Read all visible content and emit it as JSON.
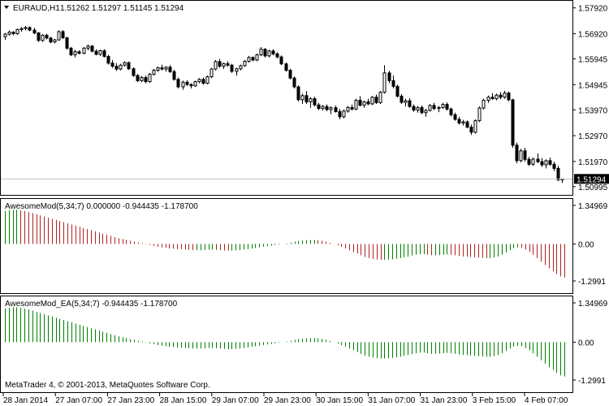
{
  "main_chart": {
    "header_symbol": "EURAUD,H1",
    "header_ohlc": "1.51262 1.51297 1.51145 1.51294",
    "price_ticks": [
      "1.57920",
      "1.56920",
      "1.55945",
      "1.54945",
      "1.53970",
      "1.52970",
      "1.51970",
      "1.50995"
    ],
    "current_price": "1.51294",
    "ylim": [
      1.508,
      1.581
    ],
    "candles": [
      [
        1.568,
        1.5695,
        1.5668,
        1.569
      ],
      [
        1.569,
        1.5705,
        1.5684,
        1.5698
      ],
      [
        1.5698,
        1.5702,
        1.5686,
        1.5692
      ],
      [
        1.5692,
        1.5712,
        1.5688,
        1.5708
      ],
      [
        1.5708,
        1.5718,
        1.57,
        1.5712
      ],
      [
        1.5712,
        1.5722,
        1.5705,
        1.5716
      ],
      [
        1.5716,
        1.572,
        1.5702,
        1.5706
      ],
      [
        1.5706,
        1.5715,
        1.569,
        1.5695
      ],
      [
        1.5695,
        1.5698,
        1.566,
        1.5666
      ],
      [
        1.5666,
        1.569,
        1.566,
        1.5686
      ],
      [
        1.5686,
        1.5692,
        1.567,
        1.5675
      ],
      [
        1.5675,
        1.568,
        1.5655,
        1.566
      ],
      [
        1.566,
        1.5672,
        1.5655,
        1.5668
      ],
      [
        1.5668,
        1.5705,
        1.5665,
        1.57
      ],
      [
        1.57,
        1.5706,
        1.5672,
        1.5676
      ],
      [
        1.5676,
        1.568,
        1.563,
        1.5636
      ],
      [
        1.5636,
        1.564,
        1.5605,
        1.561
      ],
      [
        1.561,
        1.563,
        1.56,
        1.5622
      ],
      [
        1.5622,
        1.5628,
        1.5612,
        1.5616
      ],
      [
        1.5616,
        1.564,
        1.5612,
        1.5636
      ],
      [
        1.5636,
        1.565,
        1.5628,
        1.5644
      ],
      [
        1.5644,
        1.5648,
        1.562,
        1.5624
      ],
      [
        1.5624,
        1.5632,
        1.5608,
        1.5612
      ],
      [
        1.5612,
        1.563,
        1.5606,
        1.5626
      ],
      [
        1.5626,
        1.5632,
        1.56,
        1.5604
      ],
      [
        1.5604,
        1.561,
        1.5572,
        1.5578
      ],
      [
        1.5578,
        1.559,
        1.556,
        1.5566
      ],
      [
        1.5566,
        1.5578,
        1.5548,
        1.5555
      ],
      [
        1.5555,
        1.5575,
        1.555,
        1.557
      ],
      [
        1.557,
        1.5585,
        1.5564,
        1.558
      ],
      [
        1.558,
        1.5584,
        1.5552,
        1.5556
      ],
      [
        1.5556,
        1.5562,
        1.5525,
        1.553
      ],
      [
        1.553,
        1.5536,
        1.5505,
        1.551
      ],
      [
        1.551,
        1.5528,
        1.5504,
        1.5522
      ],
      [
        1.5522,
        1.553,
        1.55,
        1.5506
      ],
      [
        1.5506,
        1.554,
        1.5502,
        1.5535
      ],
      [
        1.5535,
        1.5556,
        1.553,
        1.555
      ],
      [
        1.555,
        1.5564,
        1.5544,
        1.556
      ],
      [
        1.556,
        1.5572,
        1.555,
        1.5555
      ],
      [
        1.5555,
        1.5566,
        1.5545,
        1.5562
      ],
      [
        1.5562,
        1.557,
        1.554,
        1.5545
      ],
      [
        1.5545,
        1.5552,
        1.551,
        1.5515
      ],
      [
        1.5515,
        1.5522,
        1.548,
        1.5486
      ],
      [
        1.5486,
        1.551,
        1.5475,
        1.5504
      ],
      [
        1.5504,
        1.5512,
        1.549,
        1.5495
      ],
      [
        1.5495,
        1.55,
        1.548,
        1.549
      ],
      [
        1.549,
        1.551,
        1.5486,
        1.5506
      ],
      [
        1.5506,
        1.552,
        1.55,
        1.5515
      ],
      [
        1.5515,
        1.5522,
        1.5495,
        1.55
      ],
      [
        1.55,
        1.553,
        1.5496,
        1.5525
      ],
      [
        1.5525,
        1.556,
        1.552,
        1.5555
      ],
      [
        1.5555,
        1.559,
        1.555,
        1.5584
      ],
      [
        1.5584,
        1.5594,
        1.556,
        1.5566
      ],
      [
        1.5566,
        1.558,
        1.5555,
        1.5576
      ],
      [
        1.5576,
        1.5585,
        1.5564,
        1.557
      ],
      [
        1.557,
        1.5575,
        1.554,
        1.5546
      ],
      [
        1.5546,
        1.556,
        1.553,
        1.5556
      ],
      [
        1.5556,
        1.5572,
        1.555,
        1.5568
      ],
      [
        1.5568,
        1.559,
        1.5564,
        1.5585
      ],
      [
        1.5585,
        1.5606,
        1.558,
        1.56
      ],
      [
        1.56,
        1.5604,
        1.5585,
        1.559
      ],
      [
        1.559,
        1.5615,
        1.5586,
        1.561
      ],
      [
        1.561,
        1.564,
        1.5605,
        1.5632
      ],
      [
        1.5632,
        1.5636,
        1.56,
        1.5606
      ],
      [
        1.5606,
        1.563,
        1.56,
        1.5625
      ],
      [
        1.5625,
        1.5632,
        1.5608,
        1.5614
      ],
      [
        1.5614,
        1.562,
        1.5596,
        1.5602
      ],
      [
        1.5602,
        1.5608,
        1.557,
        1.5575
      ],
      [
        1.5575,
        1.558,
        1.5545,
        1.555
      ],
      [
        1.555,
        1.5556,
        1.5515,
        1.552
      ],
      [
        1.552,
        1.5526,
        1.548,
        1.5486
      ],
      [
        1.5486,
        1.5492,
        1.543,
        1.5436
      ],
      [
        1.5436,
        1.546,
        1.542,
        1.5452
      ],
      [
        1.5452,
        1.547,
        1.542,
        1.5428
      ],
      [
        1.5428,
        1.5446,
        1.5405,
        1.544
      ],
      [
        1.544,
        1.5448,
        1.541,
        1.5416
      ],
      [
        1.5416,
        1.5424,
        1.5396,
        1.5402
      ],
      [
        1.5402,
        1.5416,
        1.5394,
        1.541
      ],
      [
        1.541,
        1.5418,
        1.5392,
        1.5398
      ],
      [
        1.5398,
        1.541,
        1.538,
        1.5405
      ],
      [
        1.5405,
        1.5414,
        1.5386,
        1.539
      ],
      [
        1.539,
        1.54,
        1.536,
        1.537
      ],
      [
        1.537,
        1.5398,
        1.5364,
        1.5392
      ],
      [
        1.5392,
        1.5412,
        1.5386,
        1.5406
      ],
      [
        1.5406,
        1.5418,
        1.5395,
        1.54
      ],
      [
        1.54,
        1.544,
        1.5396,
        1.5434
      ],
      [
        1.5434,
        1.545,
        1.541,
        1.5415
      ],
      [
        1.5415,
        1.5432,
        1.5405,
        1.5428
      ],
      [
        1.5428,
        1.544,
        1.5415,
        1.542
      ],
      [
        1.542,
        1.545,
        1.5416,
        1.5446
      ],
      [
        1.5446,
        1.5456,
        1.542,
        1.5425
      ],
      [
        1.5425,
        1.547,
        1.542,
        1.5465
      ],
      [
        1.5465,
        1.557,
        1.546,
        1.554
      ],
      [
        1.554,
        1.5548,
        1.55,
        1.551
      ],
      [
        1.551,
        1.553,
        1.548,
        1.5488
      ],
      [
        1.5488,
        1.5494,
        1.5445,
        1.545
      ],
      [
        1.545,
        1.5458,
        1.542,
        1.5426
      ],
      [
        1.5426,
        1.544,
        1.541,
        1.5432
      ],
      [
        1.5432,
        1.5442,
        1.5405,
        1.541
      ],
      [
        1.541,
        1.5418,
        1.539,
        1.5396
      ],
      [
        1.5396,
        1.5412,
        1.5386,
        1.5406
      ],
      [
        1.5406,
        1.5414,
        1.538,
        1.5386
      ],
      [
        1.5386,
        1.54,
        1.537,
        1.5395
      ],
      [
        1.5395,
        1.542,
        1.539,
        1.5414
      ],
      [
        1.5414,
        1.5424,
        1.5396,
        1.5402
      ],
      [
        1.5402,
        1.5412,
        1.5388,
        1.5406
      ],
      [
        1.5406,
        1.5424,
        1.54,
        1.5418
      ],
      [
        1.5418,
        1.5426,
        1.5394,
        1.54
      ],
      [
        1.54,
        1.5406,
        1.5372,
        1.5378
      ],
      [
        1.5378,
        1.5386,
        1.5355,
        1.536
      ],
      [
        1.536,
        1.537,
        1.534,
        1.5346
      ],
      [
        1.5346,
        1.5358,
        1.5336,
        1.535
      ],
      [
        1.535,
        1.5356,
        1.5326,
        1.533
      ],
      [
        1.533,
        1.534,
        1.53,
        1.531
      ],
      [
        1.531,
        1.536,
        1.5305,
        1.5355
      ],
      [
        1.5355,
        1.541,
        1.535,
        1.5404
      ],
      [
        1.5404,
        1.544,
        1.5398,
        1.5434
      ],
      [
        1.5434,
        1.5452,
        1.5424,
        1.5446
      ],
      [
        1.5446,
        1.5462,
        1.5436,
        1.544
      ],
      [
        1.544,
        1.546,
        1.5434,
        1.5454
      ],
      [
        1.5454,
        1.5466,
        1.5438,
        1.5446
      ],
      [
        1.5446,
        1.547,
        1.544,
        1.5462
      ],
      [
        1.5462,
        1.5468,
        1.543,
        1.5436
      ],
      [
        1.5436,
        1.544,
        1.525,
        1.526
      ],
      [
        1.526,
        1.527,
        1.519,
        1.52
      ],
      [
        1.52,
        1.5246,
        1.5194,
        1.5238
      ],
      [
        1.5238,
        1.525,
        1.5196,
        1.5205
      ],
      [
        1.5205,
        1.5215,
        1.518,
        1.5186
      ],
      [
        1.5186,
        1.5212,
        1.518,
        1.5206
      ],
      [
        1.5206,
        1.5228,
        1.519,
        1.5196
      ],
      [
        1.5196,
        1.521,
        1.5176,
        1.5184
      ],
      [
        1.5184,
        1.5205,
        1.517,
        1.52
      ],
      [
        1.52,
        1.5212,
        1.518,
        1.5186
      ],
      [
        1.5186,
        1.5196,
        1.516,
        1.517
      ],
      [
        1.517,
        1.518,
        1.512,
        1.5126
      ],
      [
        1.5126,
        1.513,
        1.5114,
        1.5129
      ]
    ]
  },
  "indicator_1": {
    "header": "AwesomeMod(5,34;7) 0.000000 -0.944435 -1.178700",
    "ticks": [
      "1.34969",
      "0.00",
      "-1.2991"
    ],
    "ylim": [
      -1.3,
      1.35
    ],
    "colors": {
      "up": "#008000",
      "down": "#b22222"
    }
  },
  "indicator_2": {
    "header": "AwesomeMod_EA(5,34;7) -0.944435 -1.178700",
    "ticks": [
      "1.34969",
      "0.00",
      "-1.2991"
    ],
    "ylim": [
      -1.3,
      1.35
    ],
    "color": "#008000"
  },
  "oscillator_values": [
    1.15,
    1.18,
    1.2,
    1.2,
    1.18,
    1.15,
    1.12,
    1.08,
    1.04,
    1.0,
    0.96,
    0.92,
    0.88,
    0.84,
    0.8,
    0.76,
    0.72,
    0.68,
    0.64,
    0.6,
    0.56,
    0.52,
    0.48,
    0.44,
    0.4,
    0.36,
    0.32,
    0.28,
    0.24,
    0.2,
    0.17,
    0.14,
    0.11,
    0.08,
    0.05,
    0.02,
    -0.01,
    -0.04,
    -0.07,
    -0.1,
    -0.12,
    -0.14,
    -0.16,
    -0.17,
    -0.18,
    -0.19,
    -0.2,
    -0.21,
    -0.22,
    -0.22,
    -0.22,
    -0.21,
    -0.2,
    -0.2,
    -0.21,
    -0.22,
    -0.23,
    -0.24,
    -0.24,
    -0.23,
    -0.22,
    -0.2,
    -0.18,
    -0.16,
    -0.14,
    -0.12,
    -0.1,
    -0.08,
    -0.06,
    -0.04,
    -0.02,
    0.0,
    0.02,
    0.05,
    0.08,
    0.1,
    0.12,
    0.13,
    0.14,
    0.14,
    0.13,
    0.11,
    0.08,
    0.04,
    0.0,
    -0.05,
    -0.1,
    -0.16,
    -0.22,
    -0.28,
    -0.34,
    -0.4,
    -0.46,
    -0.5,
    -0.53,
    -0.55,
    -0.56,
    -0.56,
    -0.55,
    -0.54,
    -0.52,
    -0.5,
    -0.47,
    -0.44,
    -0.41,
    -0.38,
    -0.36,
    -0.36,
    -0.38,
    -0.4,
    -0.4,
    -0.39,
    -0.38,
    -0.37,
    -0.38,
    -0.4,
    -0.42,
    -0.44,
    -0.45,
    -0.46,
    -0.47,
    -0.48,
    -0.49,
    -0.5,
    -0.5,
    -0.48,
    -0.44,
    -0.38,
    -0.3,
    -0.22,
    -0.15,
    -0.12,
    -0.14,
    -0.2,
    -0.28,
    -0.38,
    -0.5,
    -0.62,
    -0.74,
    -0.86,
    -0.96,
    -1.06,
    -1.14,
    -1.18
  ],
  "x_axis_labels": [
    "28 Jan 2014",
    "27 Jan 07:00",
    "27 Jan 23:00",
    "28 Jan 15:00",
    "29 Jan 07:00",
    "29 Jan 23:00",
    "30 Jan 15:00",
    "31 Jan 07:00",
    "31 Jan 23:00",
    "3 Feb 15:00",
    "4 Feb 07:00"
  ],
  "footer": "MetaTrader 4, © 2001-2013, MetaQuotes Software Corp.",
  "colors": {
    "candle": "#000000",
    "grid_line": "#000000",
    "bid_line": "#c0c0c0",
    "background": "#ffffff"
  }
}
